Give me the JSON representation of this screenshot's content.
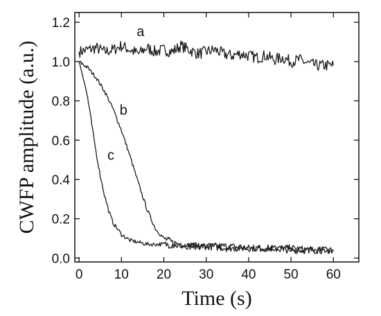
{
  "chart_data": {
    "type": "line",
    "title": "",
    "xlabel": "Time (s)",
    "ylabel": "CWFP amplitude (a.u.)",
    "xlim": [
      -1,
      66
    ],
    "ylim": [
      -0.02,
      1.25
    ],
    "xticks": [
      0,
      10,
      20,
      30,
      40,
      50,
      60
    ],
    "xtick_labels": [
      "0",
      "10",
      "20",
      "30",
      "40",
      "50",
      "60"
    ],
    "yticks": [
      0.0,
      0.2,
      0.4,
      0.6,
      0.8,
      1.0,
      1.2
    ],
    "ytick_labels": [
      "0.0",
      "0.2",
      "0.4",
      "0.6",
      "0.8",
      "1.0",
      "1.2"
    ],
    "grid": false,
    "legend": "none",
    "series": [
      {
        "x": [
          0,
          2,
          4,
          6,
          8,
          10,
          12,
          14,
          16,
          18,
          20,
          22,
          24,
          26,
          28,
          30,
          32,
          34,
          36,
          38,
          40,
          42,
          44,
          46,
          48,
          50,
          52,
          54,
          56,
          58,
          60
        ],
        "values": [
          1.05,
          1.06,
          1.07,
          1.05,
          1.06,
          1.08,
          1.06,
          1.04,
          1.07,
          1.05,
          1.06,
          1.05,
          1.08,
          1.06,
          1.04,
          1.05,
          1.06,
          1.04,
          1.03,
          1.04,
          1.03,
          1.02,
          1.03,
          1.01,
          1.02,
          1.0,
          1.01,
          0.99,
          0.98,
          0.98,
          0.98
        ]
      },
      {
        "x": [
          0,
          2,
          4,
          6,
          8,
          10,
          12,
          14,
          16,
          18,
          20,
          22,
          24,
          26,
          28,
          30,
          35,
          40,
          45,
          50,
          55,
          60
        ],
        "values": [
          1.0,
          0.97,
          0.92,
          0.85,
          0.76,
          0.65,
          0.52,
          0.38,
          0.25,
          0.15,
          0.1,
          0.08,
          0.07,
          0.06,
          0.06,
          0.06,
          0.06,
          0.05,
          0.05,
          0.05,
          0.04,
          0.04
        ]
      },
      {
        "x": [
          0,
          1,
          2,
          3,
          4,
          5,
          6,
          7,
          8,
          10,
          12,
          14,
          16,
          18,
          20,
          25,
          30,
          35,
          40,
          45,
          50,
          55,
          60
        ],
        "values": [
          1.0,
          0.92,
          0.82,
          0.68,
          0.54,
          0.42,
          0.32,
          0.24,
          0.18,
          0.12,
          0.09,
          0.08,
          0.07,
          0.07,
          0.07,
          0.06,
          0.06,
          0.05,
          0.05,
          0.05,
          0.04,
          0.04,
          0.04
        ]
      }
    ],
    "annotations": [
      {
        "text": "a",
        "x": 14.5,
        "y": 1.13
      },
      {
        "text": "b",
        "x": 10.5,
        "y": 0.73
      },
      {
        "text": "c",
        "x": 7.5,
        "y": 0.5
      }
    ]
  }
}
